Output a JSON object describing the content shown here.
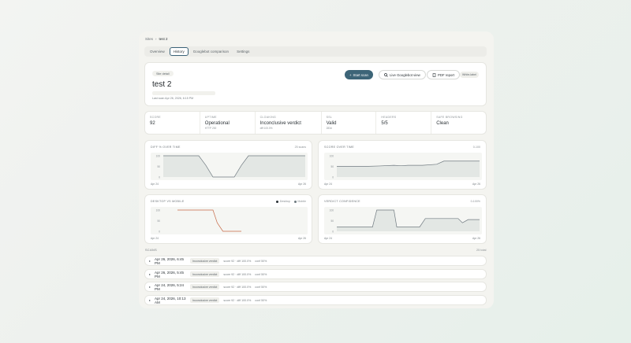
{
  "breadcrumb": {
    "root": "Sites",
    "sep": "›",
    "current": "test 2"
  },
  "tabs": [
    {
      "label": "Overview",
      "active": false
    },
    {
      "label": "History",
      "active": true
    },
    {
      "label": "Googlebot comparison",
      "active": false
    },
    {
      "label": "Settings",
      "active": false
    }
  ],
  "hero": {
    "pill": "Site detail",
    "title": "test 2",
    "last_scan": "Last scan Apr 26, 2026, 6:15 PM",
    "start_scan": "Start scan",
    "live_view": "Live Googlebot view",
    "pdf_report": "PDF report",
    "white_label": "White-label"
  },
  "metrics": [
    {
      "label": "Score",
      "value": "92",
      "sub": ""
    },
    {
      "label": "Uptime",
      "value": "Operational",
      "sub": "HTTP 200"
    },
    {
      "label": "Cloaking",
      "value": "Inconclusive verdict",
      "sub": "diff 100.0%"
    },
    {
      "label": "SSL",
      "value": "Valid",
      "sub": "283d"
    },
    {
      "label": "Headers",
      "value": "5/5",
      "sub": ""
    },
    {
      "label": "Safe browsing",
      "value": "Clean",
      "sub": ""
    }
  ],
  "charts": {
    "diff": {
      "title": "Diff % over time",
      "right": "25 scans",
      "x_start": "Apr 24",
      "x_end": "Apr 26"
    },
    "score": {
      "title": "Score over time",
      "right": "0-100",
      "x_start": "Apr 24",
      "x_end": "Apr 26"
    },
    "desktop": {
      "title": "Desktop vs mobile",
      "legend_desktop": "Desktop",
      "legend_mobile": "Mobile",
      "x_start": "Apr 24",
      "x_end": "Apr 26"
    },
    "verdict": {
      "title": "Verdict confidence",
      "right": "0-100%",
      "x_start": "Apr 24",
      "x_end": "Apr 26"
    }
  },
  "chart_data": [
    {
      "type": "area",
      "title": "Diff % over time",
      "ylim": [
        0,
        100
      ],
      "ticks": [
        "100",
        "50",
        "0"
      ],
      "x": [
        0,
        5,
        10,
        15,
        18,
        21,
        25,
        30,
        35,
        38,
        42,
        46,
        50,
        55,
        60,
        65,
        70,
        75,
        80,
        85,
        90,
        95,
        100
      ],
      "values": [
        100,
        100,
        100,
        100,
        100,
        100,
        100,
        55,
        0,
        0,
        0,
        0,
        0,
        55,
        100,
        100,
        100,
        100,
        100,
        100,
        100,
        100,
        100
      ]
    },
    {
      "type": "area",
      "title": "Score over time",
      "ylim": [
        0,
        100
      ],
      "ticks": [
        "100",
        "50",
        "0"
      ],
      "x": [
        0,
        10,
        20,
        30,
        40,
        45,
        50,
        55,
        60,
        70,
        75,
        80,
        85,
        90,
        100
      ],
      "values": [
        50,
        50,
        50,
        52,
        55,
        53,
        55,
        55,
        55,
        60,
        75,
        75,
        75,
        75,
        75
      ]
    },
    {
      "type": "line",
      "title": "Desktop vs mobile",
      "ylim": [
        0,
        100
      ],
      "ticks": [
        "100",
        "50",
        "0"
      ],
      "series": [
        {
          "name": "Desktop",
          "x": [
            10,
            20,
            30,
            35,
            38,
            42,
            50,
            55
          ],
          "values": [
            100,
            100,
            100,
            100,
            40,
            0,
            0,
            0
          ]
        }
      ]
    },
    {
      "type": "area",
      "title": "Verdict confidence",
      "ylim": [
        0,
        100
      ],
      "ticks": [
        "100",
        "50",
        "0"
      ],
      "x": [
        0,
        10,
        20,
        25,
        28,
        35,
        40,
        42,
        45,
        50,
        58,
        62,
        70,
        75,
        85,
        88,
        92,
        100
      ],
      "values": [
        20,
        20,
        20,
        20,
        100,
        100,
        100,
        20,
        20,
        20,
        20,
        60,
        60,
        60,
        60,
        40,
        55,
        55
      ]
    }
  ],
  "scans": {
    "heading": "SCANS",
    "count": "25 total",
    "rows": [
      {
        "caret": "▸",
        "date": "Apr 26, 2026, 6:45 PM",
        "badge": "Inconclusive verdict",
        "score": "score 92 · diff 100.0%",
        "conf": "conf 50%"
      },
      {
        "caret": "▸",
        "date": "Apr 26, 2026, 5:45 PM",
        "badge": "Inconclusive verdict",
        "score": "score 92 · diff 100.0%",
        "conf": "conf 50%"
      },
      {
        "caret": "▸",
        "date": "Apr 24, 2026, 5:24 PM",
        "badge": "Inconclusive verdict",
        "score": "score 92 · diff 100.0%",
        "conf": "conf 50%"
      },
      {
        "caret": "▸",
        "date": "Apr 24, 2026, 10:13 AM",
        "badge": "Inconclusive verdict",
        "score": "score 92 · diff 100.0%",
        "conf": "conf 50%"
      }
    ]
  },
  "colors": {
    "accent": "#3d6578",
    "desktop": "#c66a48",
    "mobile": "#6e7a80",
    "line": "#707a80"
  }
}
